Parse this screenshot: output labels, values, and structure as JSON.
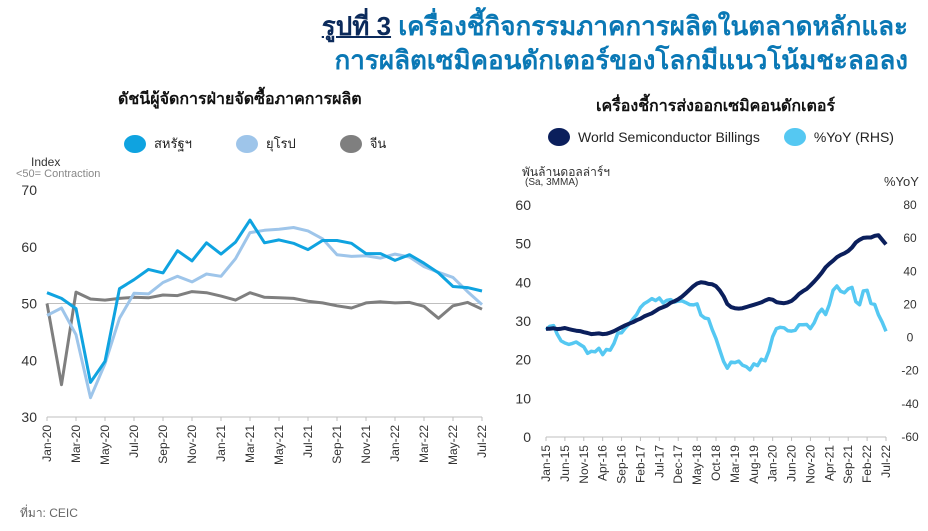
{
  "title": {
    "lead": "รูปที่ 3",
    "line1": "เครื่องชี้กิจกรรมภาคการผลิตในตลาดหลักและ",
    "line2": "การผลิตเซมิคอนดักเตอร์ของโลกมีแนวโน้มชะลอลง"
  },
  "source": "ที่มา: CEIC",
  "chart_data": [
    {
      "type": "line",
      "title": "ดัชนีผู้จัดการฝ่ายจัดซื้อภาคการผลิต",
      "ylabel": "Index",
      "ylabel_note": "<50= Contraction",
      "ylim": [
        30,
        70
      ],
      "yticks": [
        30,
        40,
        50,
        60,
        70
      ],
      "reference_line": 50,
      "x_start": "2020-01",
      "xtick_labels": [
        "Jan-20",
        "Mar-20",
        "May-20",
        "Jul-20",
        "Sep-20",
        "Nov-20",
        "Jan-21",
        "Mar-21",
        "May-21",
        "Jul-21",
        "Sep-21",
        "Nov-21",
        "Jan-22",
        "Mar-22",
        "May-22",
        "Jul-22"
      ],
      "legend_position": "top",
      "series": [
        {
          "name": "สหรัฐฯ",
          "color": "#0fa3e0",
          "values": [
            51.9,
            50.9,
            49.1,
            36.1,
            39.8,
            52.6,
            54.2,
            56.0,
            55.4,
            59.3,
            57.5,
            60.7,
            58.7,
            60.8,
            64.7,
            60.7,
            61.2,
            60.6,
            59.5,
            61.1,
            61.1,
            60.6,
            58.8,
            58.8,
            57.6,
            58.6,
            57.1,
            55.4,
            53.0,
            52.8,
            52.2
          ]
        },
        {
          "name": "ยุโรป",
          "color": "#9ec5ea",
          "values": [
            47.9,
            49.2,
            44.5,
            33.4,
            39.4,
            47.4,
            51.8,
            51.7,
            53.7,
            54.8,
            53.8,
            55.2,
            54.8,
            57.9,
            62.5,
            62.9,
            63.1,
            63.4,
            62.8,
            61.4,
            58.6,
            58.3,
            58.4,
            58.0,
            58.7,
            58.2,
            56.5,
            55.5,
            54.6,
            52.1,
            49.8
          ]
        },
        {
          "name": "จีน",
          "color": "#7f7f7f",
          "values": [
            50.0,
            35.7,
            52.0,
            50.8,
            50.6,
            50.9,
            51.1,
            51.0,
            51.5,
            51.4,
            52.1,
            51.9,
            51.3,
            50.6,
            51.9,
            51.1,
            51.0,
            50.9,
            50.4,
            50.1,
            49.6,
            49.2,
            50.1,
            50.3,
            50.1,
            50.2,
            49.5,
            47.4,
            49.6,
            50.2,
            49.0
          ]
        }
      ]
    },
    {
      "type": "line",
      "title": "เครื่องชี้การส่งออกเซมิคอนดักเตอร์",
      "ylabel": "พันล้านดอลล่าร์ฯ",
      "ylabel_note": "(Sa, 3MMA)",
      "ylim": [
        0,
        60
      ],
      "yticks": [
        0,
        10,
        20,
        30,
        40,
        50,
        60
      ],
      "ylabel_right": "%YoY",
      "ylim_right": [
        -60,
        80
      ],
      "yticks_right": [
        -60,
        -40,
        -20,
        0,
        20,
        40,
        60,
        80
      ],
      "x_start": "2015-01",
      "xtick_labels": [
        "Jan-15",
        "Jun-15",
        "Nov-15",
        "Apr-16",
        "Sep-16",
        "Feb-17",
        "Jul-17",
        "Dec-17",
        "May-18",
        "Oct-18",
        "Mar-19",
        "Aug-19",
        "Jan-20",
        "Jun-20",
        "Nov-20",
        "Apr-21",
        "Sep-21",
        "Feb-22",
        "Jul-22"
      ],
      "legend_position": "top",
      "series": [
        {
          "name": "World Semiconductor Billings",
          "axis": "left",
          "color": "#0b1f5c",
          "values": [
            28.0,
            28.0,
            28.1,
            27.9,
            28.0,
            28.2,
            27.9,
            27.7,
            27.5,
            27.4,
            27.1,
            26.9,
            26.6,
            26.7,
            26.8,
            26.6,
            26.7,
            27.0,
            27.4,
            27.9,
            28.4,
            28.9,
            29.3,
            29.7,
            30.2,
            30.6,
            31.2,
            31.6,
            32.0,
            32.6,
            33.2,
            33.6,
            34.0,
            34.7,
            35.1,
            35.6,
            36.3,
            37.2,
            38.1,
            39.0,
            39.7,
            40.0,
            39.9,
            39.6,
            39.5,
            39.0,
            37.9,
            36.4,
            34.4,
            33.6,
            33.3,
            33.2,
            33.3,
            33.6,
            33.9,
            34.2,
            34.5,
            34.8,
            35.3,
            35.7,
            35.5,
            34.9,
            34.7,
            34.6,
            34.8,
            35.2,
            36.0,
            37.0,
            37.7,
            38.3,
            39.2,
            40.2,
            41.3,
            42.5,
            43.9,
            44.8,
            45.6,
            46.5,
            47.1,
            47.5,
            48.1,
            49.0,
            50.3,
            51.0,
            51.5,
            51.6,
            51.6,
            52.0,
            52.2,
            51.0,
            49.8
          ]
        },
        {
          "name": "%YoY (RHS)",
          "axis": "right",
          "color": "#55c8f2",
          "values": [
            4.6,
            6.8,
            7.2,
            1.9,
            -2.0,
            -3.3,
            -4.1,
            -3.5,
            -2.7,
            -4.2,
            -5.6,
            -9.5,
            -8.3,
            -8.6,
            -6.5,
            -10.3,
            -7.2,
            -7.6,
            -3.5,
            2.7,
            2.9,
            5.8,
            8.1,
            11.2,
            13.9,
            18.1,
            20.5,
            21.8,
            23.5,
            22.3,
            23.9,
            20.9,
            22.5,
            22.9,
            21.4,
            22.0,
            22.1,
            21.1,
            19.9,
            19.7,
            20.3,
            13.6,
            11.8,
            11.3,
            4.8,
            -0.7,
            -7.6,
            -14.4,
            -18.5,
            -14.8,
            -15.1,
            -14.2,
            -16.6,
            -17.5,
            -19.5,
            -15.9,
            -16.9,
            -13.1,
            -14.0,
            -8.1,
            0.6,
            5.4,
            6.2,
            5.9,
            4.1,
            3.9,
            4.4,
            7.7,
            7.7,
            7.9,
            5.4,
            8.9,
            14.3,
            17.1,
            13.9,
            19.9,
            28.5,
            31.1,
            27.9,
            27.0,
            29.4,
            30.3,
            21.7,
            19.8,
            28.1,
            28.5,
            20.6,
            20.0,
            13.8,
            9.3,
            3.8
          ]
        }
      ]
    }
  ]
}
